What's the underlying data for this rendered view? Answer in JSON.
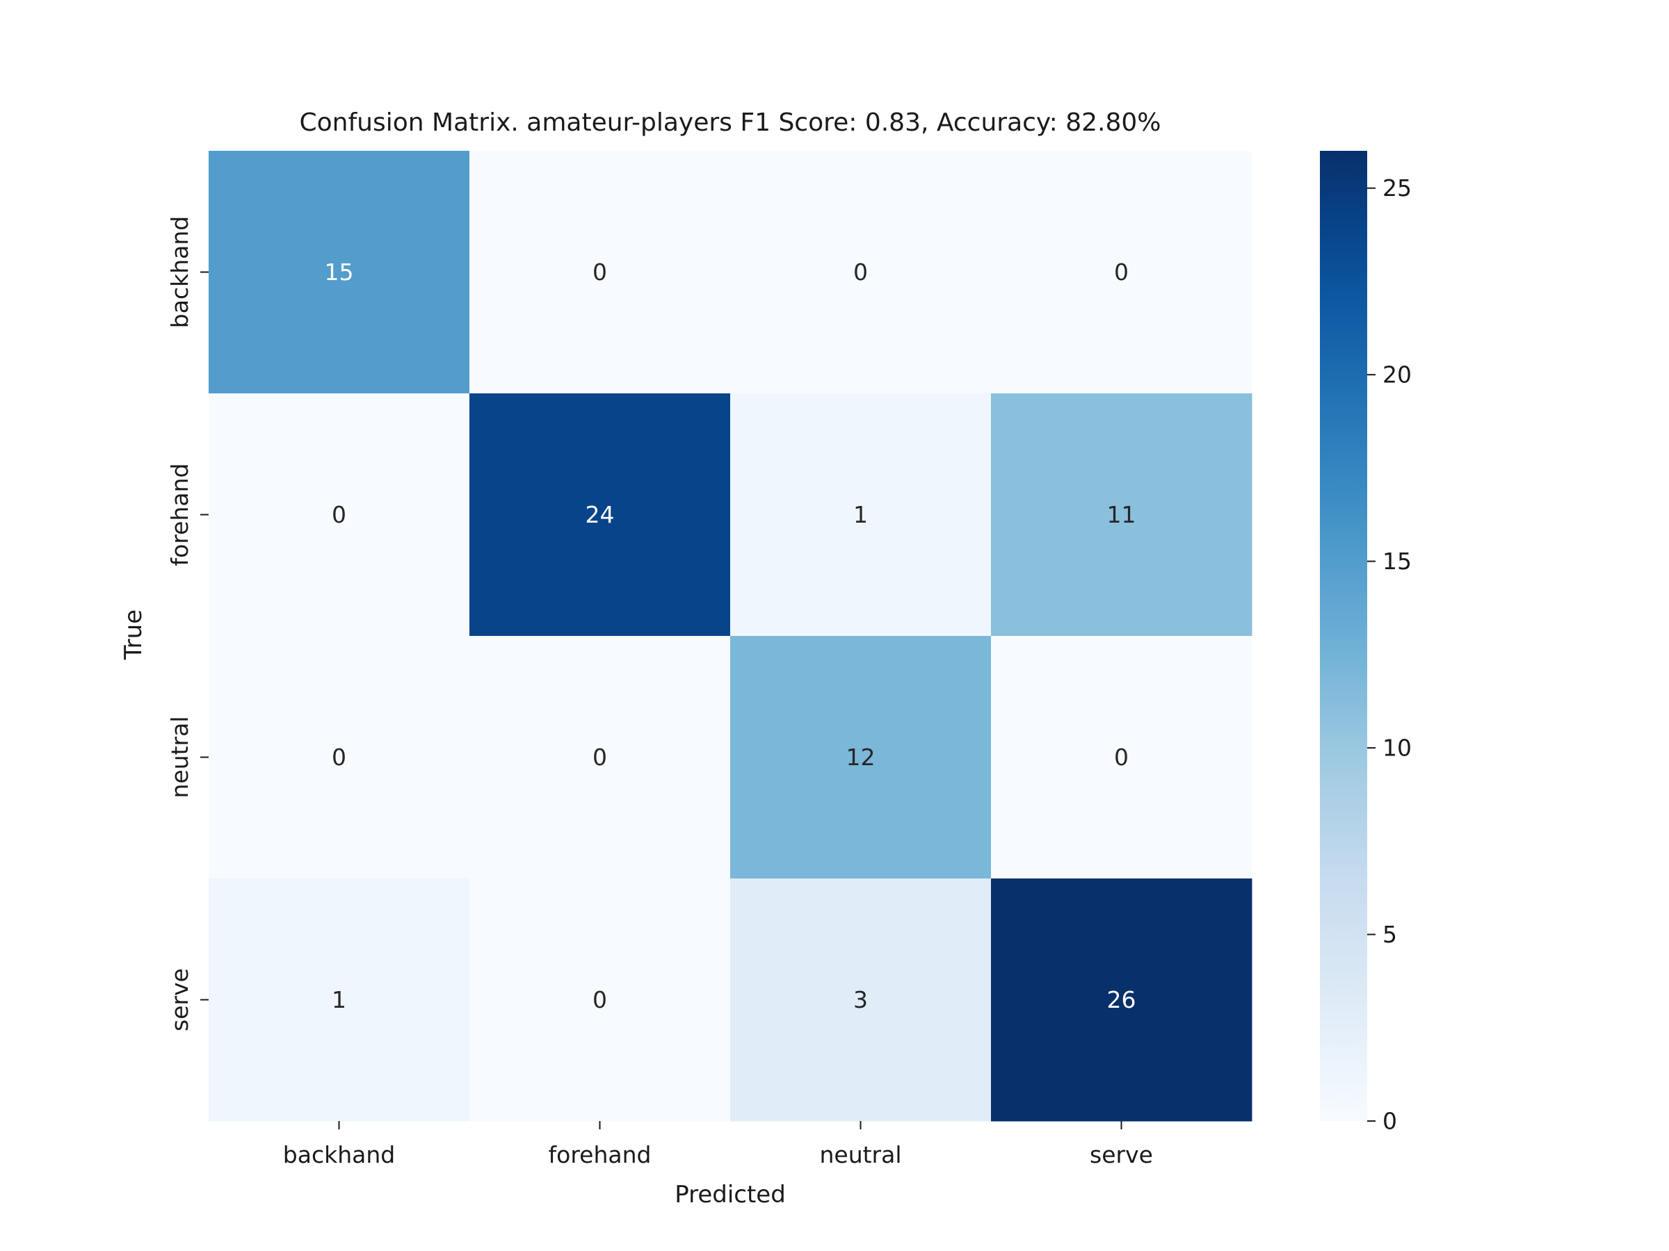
{
  "chart_data": {
    "type": "heatmap",
    "title": "Confusion Matrix. amateur-players F1 Score: 0.83, Accuracy: 82.80%",
    "xlabel": "Predicted",
    "ylabel": "True",
    "x_categories": [
      "backhand",
      "forehand",
      "neutral",
      "serve"
    ],
    "y_categories": [
      "backhand",
      "forehand",
      "neutral",
      "serve"
    ],
    "values": [
      [
        15,
        0,
        0,
        0
      ],
      [
        0,
        24,
        1,
        11
      ],
      [
        0,
        0,
        12,
        0
      ],
      [
        1,
        0,
        3,
        26
      ]
    ],
    "colorbar": {
      "min": 0,
      "max": 26,
      "ticks": [
        0,
        5,
        10,
        15,
        20,
        25
      ],
      "colormap": "Blues"
    },
    "grid": false
  }
}
